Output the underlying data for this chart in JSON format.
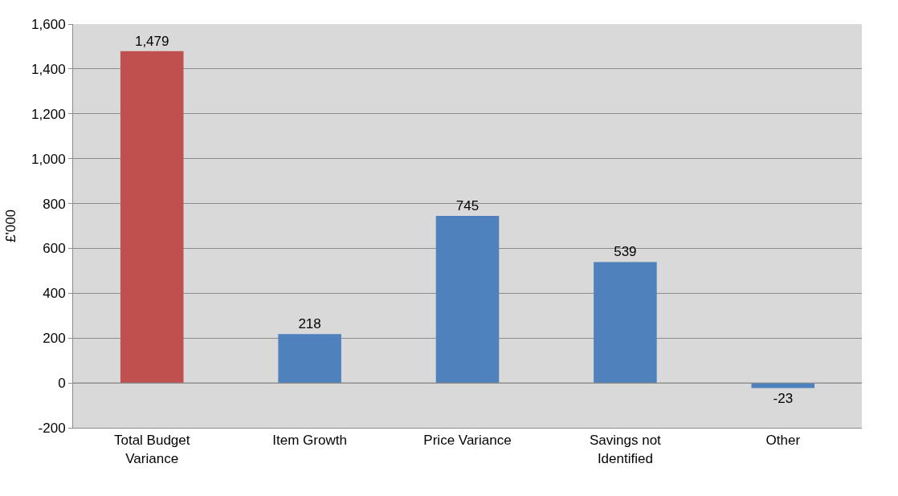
{
  "chart_data": {
    "type": "bar",
    "ylabel": "£'000",
    "categories": [
      "Total Budget Variance",
      "Item Growth",
      "Price Variance",
      "Savings not Identified",
      "Other"
    ],
    "values": [
      1479,
      218,
      745,
      539,
      -23
    ],
    "colors": [
      "#c0504d",
      "#4f81bd",
      "#4f81bd",
      "#4f81bd",
      "#4f81bd"
    ],
    "value_labels": [
      "1,479",
      "218",
      "745",
      "539",
      "-23"
    ],
    "ylim": [
      -200,
      1600
    ],
    "yticks": [
      {
        "value": -200,
        "label": "-200"
      },
      0,
      200,
      400,
      600,
      800,
      {
        "value": 1000,
        "label": "1,000"
      },
      {
        "value": 1200,
        "label": "1,200"
      },
      {
        "value": 1400,
        "label": "1,400"
      },
      {
        "value": 1600,
        "label": "1,600"
      }
    ],
    "grid": "y"
  }
}
